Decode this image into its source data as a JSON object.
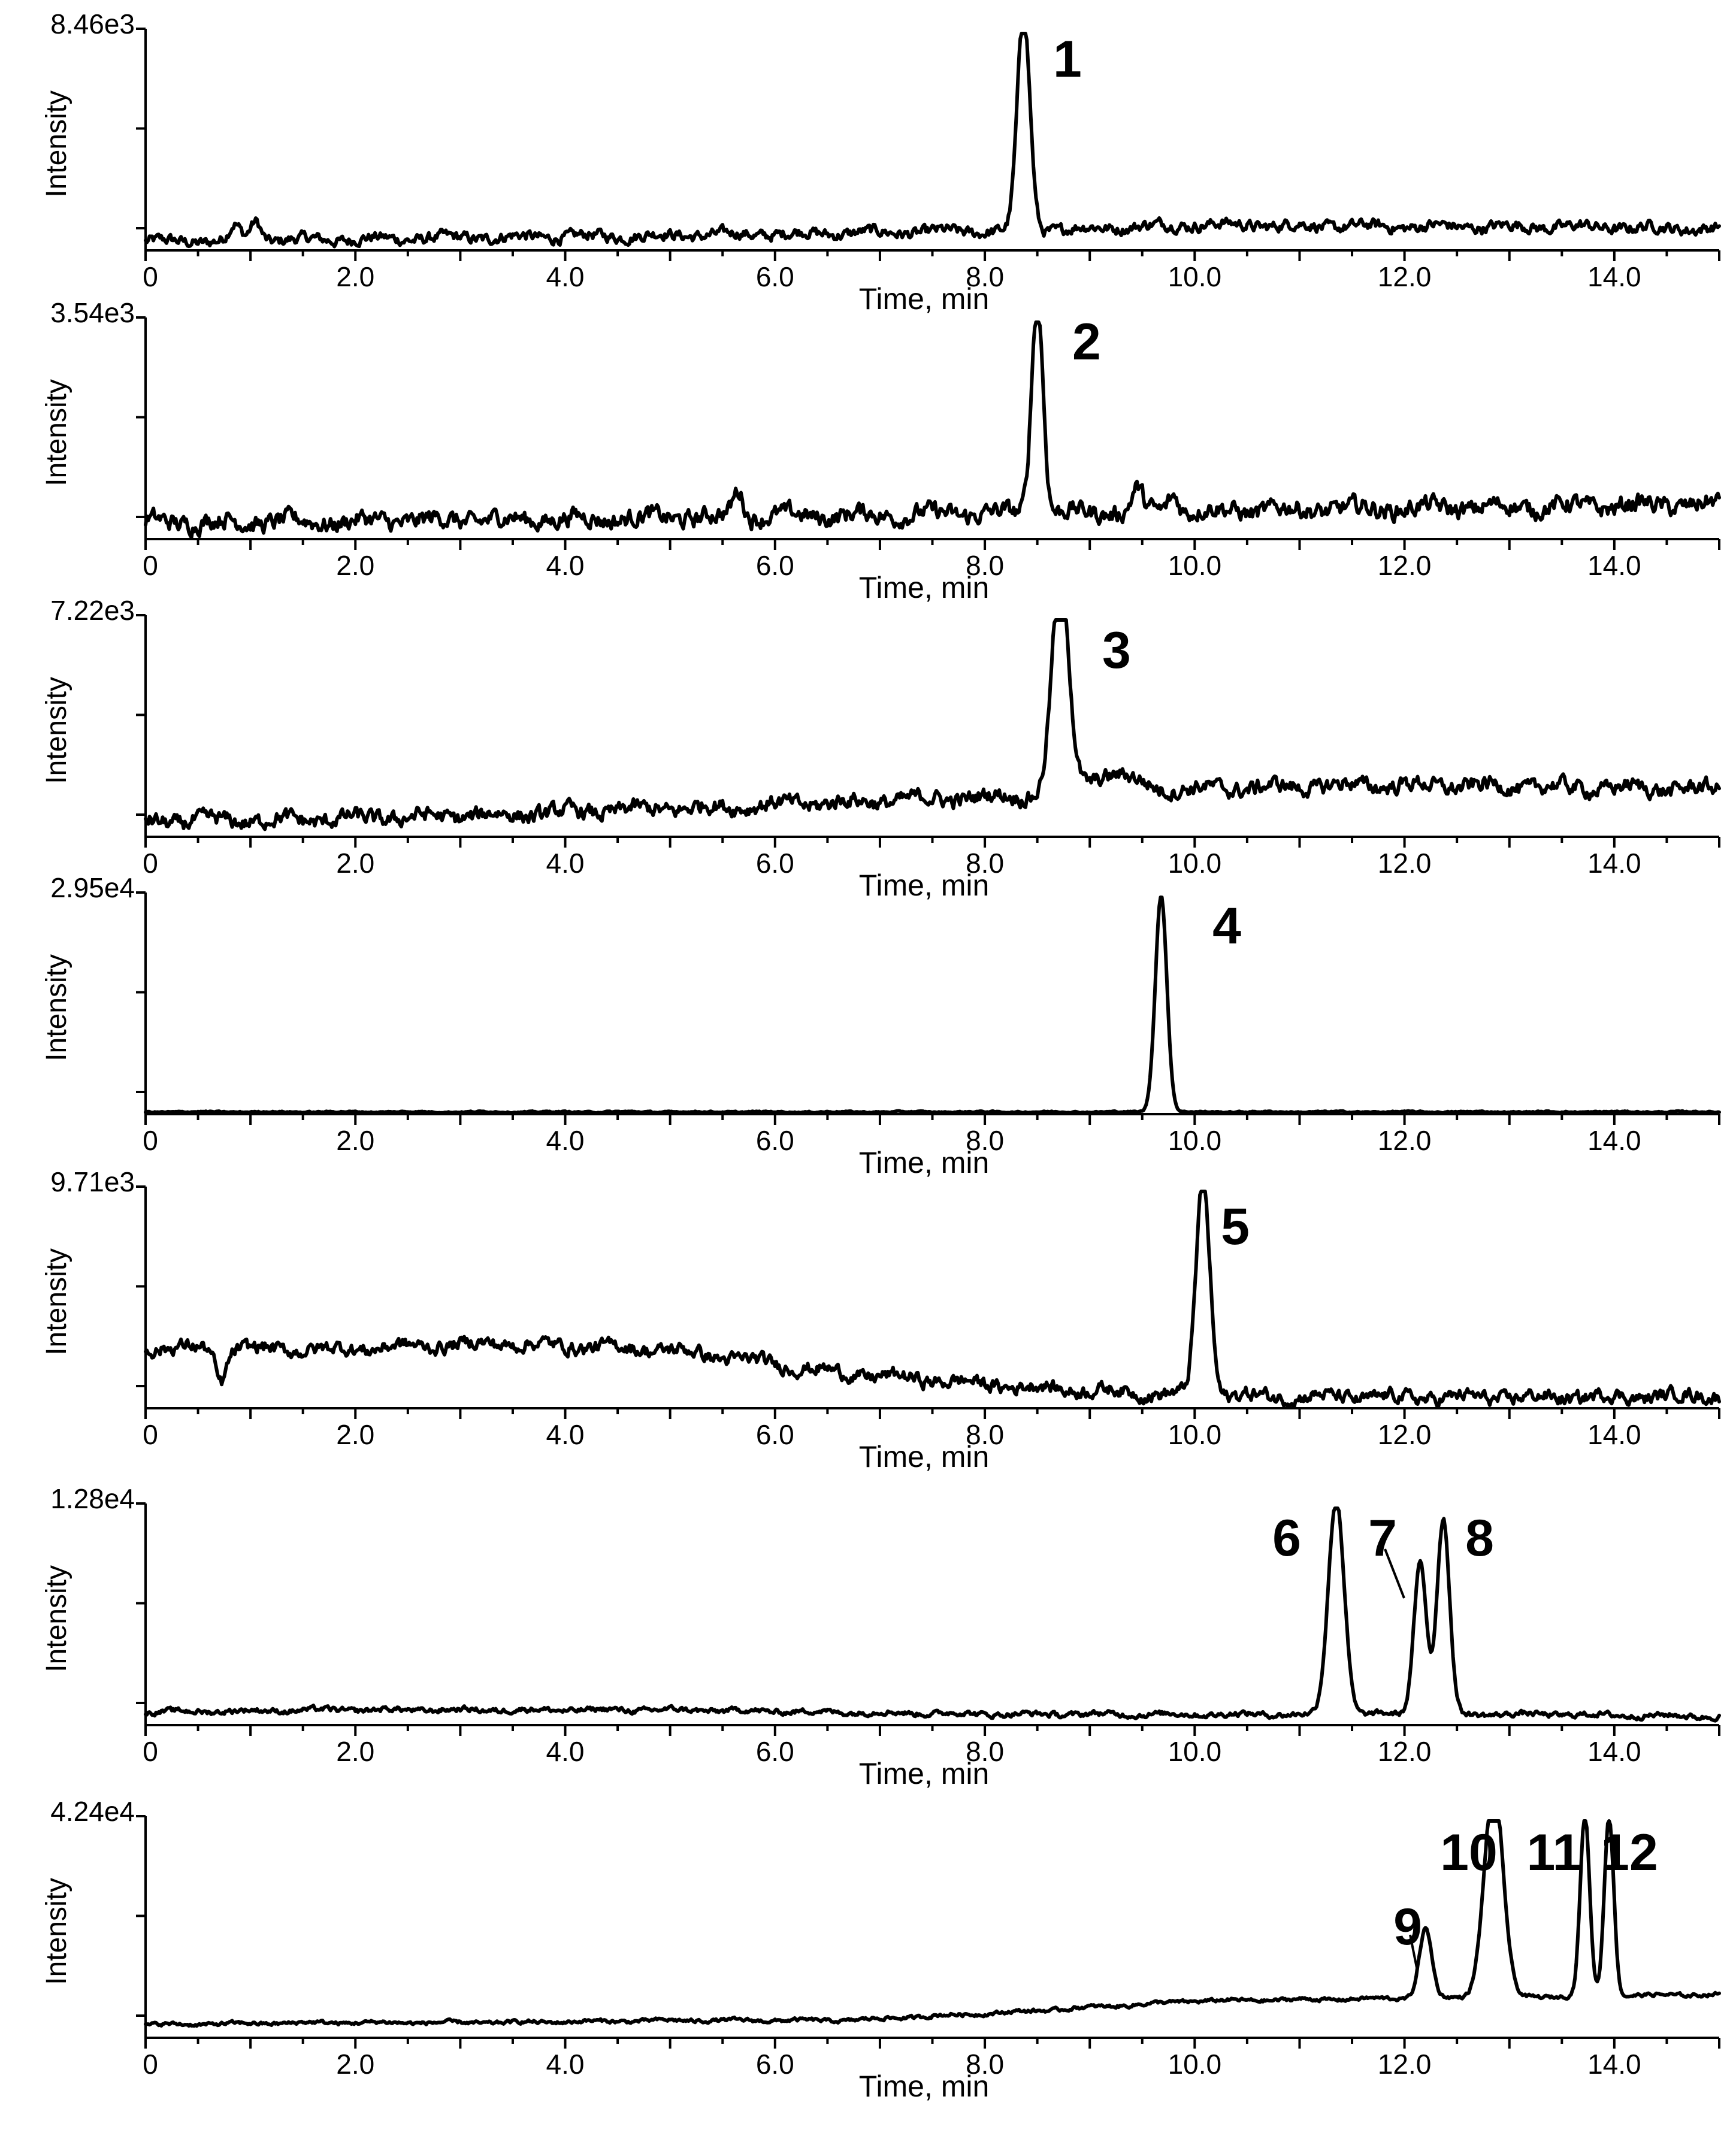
{
  "chart_data": [
    {
      "type": "line",
      "ymax_label": "8.46e3",
      "ylabel": "Intensity",
      "xlabel": "Time, min",
      "xlim": [
        0,
        15
      ],
      "xticks": [
        "0",
        "2.0",
        "4.0",
        "6.0",
        "8.0",
        "10.0",
        "12.0",
        "14.0"
      ],
      "baseline": [
        0.04,
        0.05,
        0.06,
        0.07,
        0.08,
        0.09,
        0.12,
        0.11,
        0.11,
        0.1
      ],
      "noise": 0.025,
      "peaks": [
        {
          "label": "1",
          "t": 8.37,
          "h": 1.0,
          "w": 0.06
        }
      ],
      "bumps": [
        {
          "t": 0.85,
          "h": 0.07,
          "w": 0.05
        },
        {
          "t": 1.05,
          "h": 0.09,
          "w": 0.05
        }
      ]
    },
    {
      "type": "line",
      "ymax_label": "3.54e3",
      "ylabel": "Intensity",
      "xlabel": "Time, min",
      "xlim": [
        0,
        15
      ],
      "xticks": [
        "0",
        "2.0",
        "4.0",
        "6.0",
        "8.0",
        "10.0",
        "12.0",
        "14.0"
      ],
      "baseline": [
        0.08,
        0.08,
        0.09,
        0.1,
        0.11,
        0.12,
        0.13,
        0.14,
        0.15,
        0.16
      ],
      "noise": 0.04,
      "peaks": [
        {
          "label": "2",
          "t": 8.5,
          "h": 1.0,
          "w": 0.055
        }
      ],
      "bumps": [
        {
          "t": 5.65,
          "h": 0.12,
          "w": 0.05
        },
        {
          "t": 9.45,
          "h": 0.1,
          "w": 0.05
        },
        {
          "t": 9.8,
          "h": 0.08,
          "w": 0.05
        }
      ]
    },
    {
      "type": "line",
      "ymax_label": "7.22e3",
      "ylabel": "Intensity",
      "xlabel": "Time, min",
      "xlim": [
        0,
        15
      ],
      "xticks": [
        "0",
        "2.0",
        "4.0",
        "6.0",
        "8.0",
        "10.0",
        "12.0",
        "14.0"
      ],
      "baseline": [
        0.07,
        0.08,
        0.1,
        0.13,
        0.16,
        0.19,
        0.22,
        0.24,
        0.23,
        0.22
      ],
      "noise": 0.035,
      "peaks": [
        {
          "label": "3",
          "t": 8.72,
          "h": 1.0,
          "w": 0.08
        }
      ],
      "bumps": [
        {
          "t": 9.2,
          "h": 0.08,
          "w": 0.25
        }
      ]
    },
    {
      "type": "line",
      "ymax_label": "2.95e4",
      "ylabel": "Intensity",
      "xlabel": "Time, min",
      "xlim": [
        0,
        15
      ],
      "xticks": [
        "0",
        "2.0",
        "4.0",
        "6.0",
        "8.0",
        "10.0",
        "12.0",
        "14.0"
      ],
      "baseline": [
        0.01,
        0.01,
        0.01,
        0.01,
        0.01,
        0.01,
        0.01,
        0.01,
        0.01,
        0.01
      ],
      "noise": 0.003,
      "peaks": [
        {
          "label": "4",
          "t": 9.68,
          "h": 1.0,
          "w": 0.055
        }
      ],
      "bumps": []
    },
    {
      "type": "line",
      "ymax_label": "9.71e3",
      "ylabel": "Intensity",
      "xlabel": "Time, min",
      "xlim": [
        0,
        15
      ],
      "xticks": [
        "0",
        "2.0",
        "4.0",
        "6.0",
        "8.0",
        "10.0",
        "12.0",
        "14.0"
      ],
      "baseline": [
        0.28,
        0.27,
        0.3,
        0.27,
        0.16,
        0.1,
        0.06,
        0.05,
        0.05,
        0.06
      ],
      "noise": 0.03,
      "peaks": [
        {
          "label": "5",
          "t": 10.08,
          "h": 1.0,
          "w": 0.065
        }
      ],
      "bumps": [
        {
          "t": 0.72,
          "h": -0.15,
          "w": 0.05
        }
      ]
    },
    {
      "type": "line",
      "ymax_label": "1.28e4",
      "ylabel": "Intensity",
      "xlabel": "Time, min",
      "xlim": [
        0,
        15
      ],
      "xticks": [
        "0",
        "2.0",
        "4.0",
        "6.0",
        "8.0",
        "10.0",
        "12.0",
        "14.0"
      ],
      "baseline": [
        0.06,
        0.07,
        0.07,
        0.07,
        0.06,
        0.05,
        0.05,
        0.05,
        0.05,
        0.04
      ],
      "noise": 0.012,
      "peaks": [
        {
          "label": "6",
          "t": 11.35,
          "h": 1.0,
          "w": 0.075
        },
        {
          "label": "7",
          "t": 12.15,
          "h": 0.7,
          "w": 0.06
        },
        {
          "label": "8",
          "t": 12.37,
          "h": 0.9,
          "w": 0.06
        }
      ],
      "bumps": []
    },
    {
      "type": "line",
      "ymax_label": "4.24e4",
      "ylabel": "Intensity",
      "xlabel": "Time, min",
      "xlim": [
        0,
        15
      ],
      "xticks": [
        "0",
        "2.0",
        "4.0",
        "6.0",
        "8.0",
        "10.0",
        "12.0",
        "14.0"
      ],
      "baseline": [
        0.06,
        0.07,
        0.07,
        0.08,
        0.08,
        0.12,
        0.17,
        0.18,
        0.19,
        0.2
      ],
      "noise": 0.008,
      "peaks": [
        {
          "label": "9",
          "t": 12.2,
          "h": 0.32,
          "w": 0.06
        },
        {
          "label": "10",
          "t": 12.85,
          "h": 0.97,
          "w": 0.09
        },
        {
          "label": "11",
          "t": 13.72,
          "h": 0.83,
          "w": 0.045
        },
        {
          "label": "12",
          "t": 13.95,
          "h": 0.83,
          "w": 0.045
        }
      ],
      "bumps": []
    }
  ]
}
